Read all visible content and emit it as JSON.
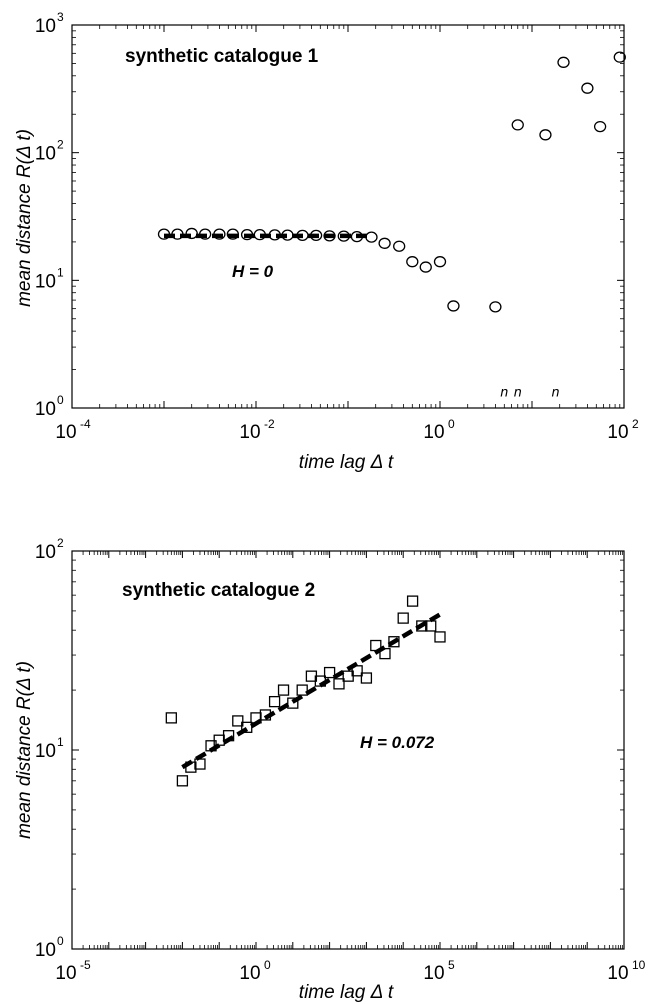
{
  "chart_data": [
    {
      "type": "scatter",
      "title": "synthetic catalogue 1",
      "xlabel": "time lag Δ t",
      "ylabel": "mean distance R(Δ t)",
      "xscale": "log",
      "yscale": "log",
      "xlim": [
        0.0001,
        100
      ],
      "ylim": [
        1,
        1000
      ],
      "xticks": [
        {
          "base": "10",
          "exp": "-4"
        },
        {
          "base": "10",
          "exp": "-2"
        },
        {
          "base": "10",
          "exp": "0"
        },
        {
          "base": "10",
          "exp": "2"
        }
      ],
      "yticks": [
        {
          "base": "10",
          "exp": "0"
        },
        {
          "base": "10",
          "exp": "1"
        },
        {
          "base": "10",
          "exp": "2"
        },
        {
          "base": "10",
          "exp": "3"
        }
      ],
      "marker": "circle",
      "series": [
        {
          "points": [
            [
              0.001,
              23
            ],
            [
              0.0014,
              23
            ],
            [
              0.002,
              23.3
            ],
            [
              0.0028,
              23
            ],
            [
              0.004,
              23
            ],
            [
              0.0056,
              23
            ],
            [
              0.008,
              22.8
            ],
            [
              0.011,
              22.8
            ],
            [
              0.016,
              22.7
            ],
            [
              0.022,
              22.6
            ],
            [
              0.032,
              22.5
            ],
            [
              0.045,
              22.5
            ],
            [
              0.063,
              22.3
            ],
            [
              0.09,
              22.2
            ],
            [
              0.125,
              22
            ],
            [
              0.18,
              21.8
            ],
            [
              0.25,
              19.5
            ],
            [
              0.36,
              18.5
            ],
            [
              0.5,
              14
            ],
            [
              0.7,
              12.7
            ],
            [
              1.0,
              14
            ],
            [
              1.4,
              6.3
            ],
            [
              4.0,
              6.2
            ],
            [
              7.0,
              165
            ],
            [
              14,
              138
            ],
            [
              22,
              510
            ],
            [
              40,
              320
            ],
            [
              55,
              160
            ],
            [
              90,
              560
            ]
          ]
        }
      ],
      "fit_line": {
        "x": [
          0.001,
          0.18
        ],
        "y": [
          22.3,
          22.3
        ],
        "style": "dashed"
      },
      "annotation": "H = 0",
      "small_marks": {
        "text": "n",
        "x": [
          5,
          7,
          18
        ],
        "y": 1.35
      }
    },
    {
      "type": "scatter",
      "title": "synthetic catalogue 2",
      "xlabel": "time lag Δ t",
      "ylabel": "mean distance R(Δ t)",
      "xscale": "log",
      "yscale": "log",
      "xlim": [
        1e-05,
        10000000000
      ],
      "ylim": [
        1,
        100
      ],
      "xticks": [
        {
          "base": "10",
          "exp": "-5"
        },
        {
          "base": "10",
          "exp": "0"
        },
        {
          "base": "10",
          "exp": "5"
        },
        {
          "base": "10",
          "exp": "10"
        }
      ],
      "yticks": [
        {
          "base": "10",
          "exp": "0"
        },
        {
          "base": "10",
          "exp": "1"
        },
        {
          "base": "10",
          "exp": "2"
        }
      ],
      "marker": "square",
      "series": [
        {
          "points": [
            [
              0.005,
              14.5
            ],
            [
              0.01,
              7.0
            ],
            [
              0.017,
              8.2
            ],
            [
              0.03,
              8.5
            ],
            [
              0.06,
              10.5
            ],
            [
              0.1,
              11.2
            ],
            [
              0.18,
              11.8
            ],
            [
              0.32,
              14.0
            ],
            [
              0.56,
              13.0
            ],
            [
              1.0,
              14.5
            ],
            [
              1.8,
              15.0
            ],
            [
              3.2,
              17.5
            ],
            [
              5.6,
              20.0
            ],
            [
              10,
              17.2
            ],
            [
              18,
              20.0
            ],
            [
              32,
              23.5
            ],
            [
              56,
              22.2
            ],
            [
              100,
              24.5
            ],
            [
              180,
              21.5
            ],
            [
              320,
              23.5
            ],
            [
              560,
              25.0
            ],
            [
              1000,
              23.0
            ],
            [
              1800,
              33.5
            ],
            [
              3200,
              30.5
            ],
            [
              5600,
              35.0
            ],
            [
              10000,
              46.0
            ],
            [
              18000,
              56.0
            ],
            [
              32000,
              42.0
            ],
            [
              56000,
              42.0
            ],
            [
              100000,
              37.0
            ]
          ]
        }
      ],
      "fit_line": {
        "x": [
          0.01,
          100000
        ],
        "y": [
          8.2,
          48
        ],
        "style": "dashed"
      },
      "annotation": "H = 0.072"
    }
  ]
}
